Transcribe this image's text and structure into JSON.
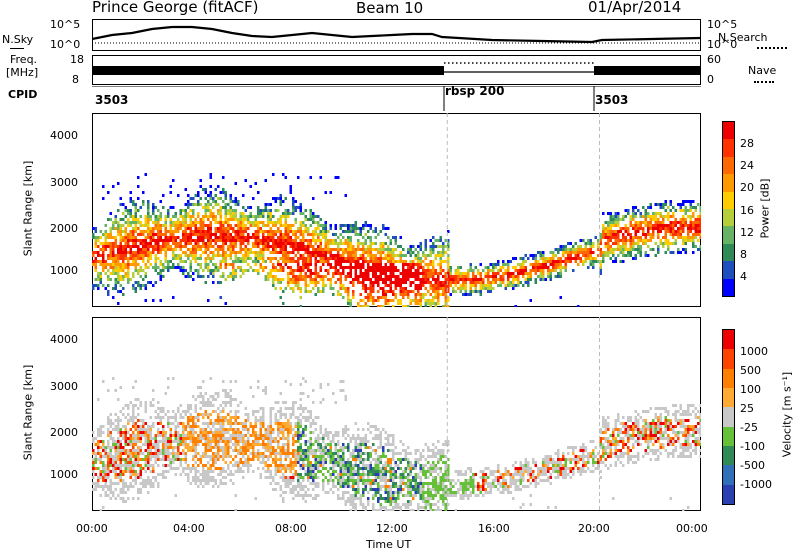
{
  "header": {
    "station": "Prince George (fitACF)",
    "beam": "Beam 10",
    "date": "01/Apr/2014"
  },
  "top_panels": {
    "nsky_label": "N.Sky",
    "nsearch_label": "N.Search",
    "noise_ticks": [
      "10^5",
      "10^0"
    ],
    "freq_label_1": "Freq.",
    "freq_label_2": "[MHz]",
    "freq_ticks": [
      "18",
      "8"
    ],
    "nave_label": "Nave",
    "nave_ticks": [
      "60",
      "0"
    ],
    "cpid_label": "CPID",
    "cpid_segments": [
      {
        "label": "3503",
        "start_hour": 0,
        "end_hour": 14
      },
      {
        "label": "rbsp 200",
        "start_hour": 14,
        "end_hour": 20
      },
      {
        "label": "3503",
        "start_hour": 20,
        "end_hour": 24
      }
    ]
  },
  "chart_data": [
    {
      "type": "heatmap",
      "name": "Power",
      "ylabel": "Slant Range [km]",
      "ylim": [
        180,
        4500
      ],
      "yticks": [
        "4000",
        "3000",
        "2000",
        "1000"
      ],
      "xlim": [
        0,
        24
      ],
      "colorbar_label": "Power [dB]",
      "colorbar_ticks": [
        "28",
        "24",
        "20",
        "16",
        "12",
        "8",
        "4"
      ],
      "colorbar_colors": [
        "#0000ff",
        "#1f4fbf",
        "#2e8b57",
        "#66b366",
        "#b5cf3a",
        "#ffcc00",
        "#ff9900",
        "#ff6a00",
        "#ff3300",
        "#ee0000"
      ]
    },
    {
      "type": "heatmap",
      "name": "Velocity",
      "ylabel": "Slant Range [km]",
      "ylim": [
        180,
        4500
      ],
      "yticks": [
        "4000",
        "3000",
        "2000",
        "1000"
      ],
      "xlim": [
        0,
        24
      ],
      "xlabel": "Time UT",
      "xticks": [
        "00:00",
        "04:00",
        "08:00",
        "12:00",
        "16:00",
        "20:00",
        "00:00"
      ],
      "colorbar_label": "Velocity [m s⁻¹]",
      "colorbar_ticks": [
        "1000",
        "500",
        "100",
        "25",
        "-25",
        "-100",
        "-500",
        "-1000"
      ],
      "colorbar_colors": [
        "#2a3fb0",
        "#3070b8",
        "#2e8b57",
        "#66c03a",
        "#c8c8c8",
        "#ffaa33",
        "#ff8000",
        "#ff4400",
        "#ee0000"
      ]
    }
  ]
}
